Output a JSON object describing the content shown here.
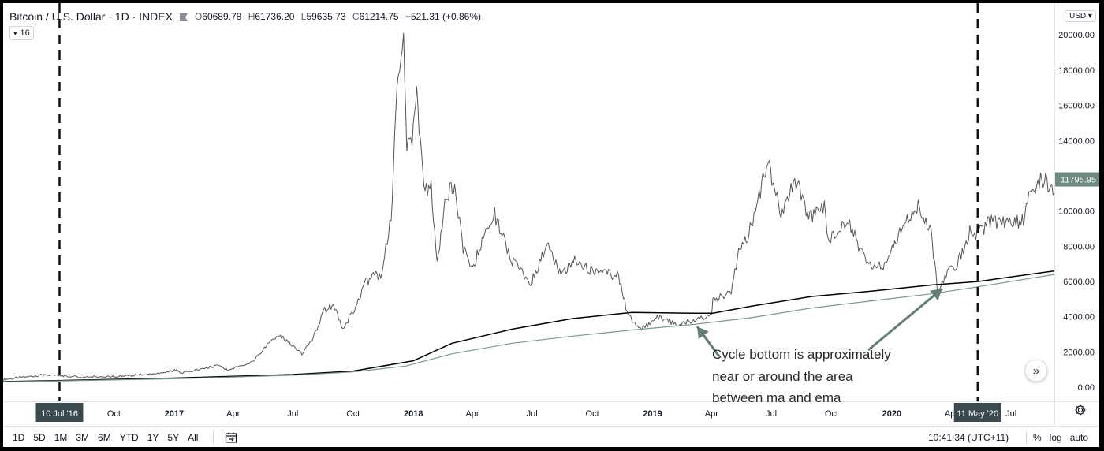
{
  "header": {
    "title": "Bitcoin / U.S. Dollar · 1D · INDEX",
    "open_label": "O",
    "open": "60689.78",
    "high_label": "H",
    "high": "61736.20",
    "low_label": "L",
    "low": "59635.73",
    "close_label": "C",
    "close": "61214.75",
    "change": "+521.31 (+0.86%)",
    "logo_icon": "index-flag-icon"
  },
  "legend_badge": {
    "icon": "chevron-down-icon",
    "label": "16"
  },
  "currency": "USD",
  "price_marker": {
    "label": "11795.95",
    "value": 11795.95
  },
  "annotation": {
    "lines": [
      "Cycle bottom is approximately",
      "near or around the area",
      "between ma and ema"
    ],
    "color": "#627d75"
  },
  "date_markers": [
    {
      "label": "10 Jul '16",
      "date": "2016-07-10"
    },
    {
      "label": "11 May '20",
      "date": "2020-05-11"
    }
  ],
  "bottom_bar": {
    "ranges": [
      "1D",
      "5D",
      "1M",
      "3M",
      "6M",
      "YTD",
      "1Y",
      "5Y",
      "All"
    ],
    "goto_icon": "calendar-goto-icon",
    "time": "10:41:34 (UTC+11)",
    "percent": "%",
    "log": "log",
    "auto": "auto",
    "settings_icon": "gear-icon",
    "scroll_icon": "double-chevron-right-icon"
  },
  "colors": {
    "price": "#555555",
    "ma": "#000000",
    "ema": "#7d978e",
    "marker_bg": "#3a4a4f",
    "price_marker_bg": "#6d8b82"
  },
  "chart_data": {
    "type": "line",
    "title": "Bitcoin / U.S. Dollar",
    "xlabel": "",
    "ylabel": "",
    "x_range": [
      "2016-04-15",
      "2020-09-05"
    ],
    "ylim": [
      -800,
      21800
    ],
    "grid": false,
    "y_ticks": [
      0,
      2000,
      4000,
      6000,
      8000,
      10000,
      12000,
      14000,
      16000,
      18000,
      20000
    ],
    "y_tick_labels": [
      "0.00",
      "2000.00",
      "4000.00",
      "6000.00",
      "8000.00",
      "10000.00",
      "12000.00",
      "14000.00",
      "16000.00",
      "18000.00",
      "20000.00"
    ],
    "x_ticks": [
      {
        "label": "Oct",
        "date": "2016-10-01",
        "bold": false
      },
      {
        "label": "2017",
        "date": "2017-01-01",
        "bold": true
      },
      {
        "label": "Apr",
        "date": "2017-04-01",
        "bold": false
      },
      {
        "label": "Jul",
        "date": "2017-07-01",
        "bold": false
      },
      {
        "label": "Oct",
        "date": "2017-10-01",
        "bold": false
      },
      {
        "label": "2018",
        "date": "2018-01-01",
        "bold": true
      },
      {
        "label": "Apr",
        "date": "2018-04-01",
        "bold": false
      },
      {
        "label": "Jul",
        "date": "2018-07-01",
        "bold": false
      },
      {
        "label": "Oct",
        "date": "2018-10-01",
        "bold": false
      },
      {
        "label": "2019",
        "date": "2019-01-01",
        "bold": true
      },
      {
        "label": "Apr",
        "date": "2019-04-01",
        "bold": false
      },
      {
        "label": "Jul",
        "date": "2019-07-01",
        "bold": false
      },
      {
        "label": "Oct",
        "date": "2019-10-01",
        "bold": false
      },
      {
        "label": "2020",
        "date": "2020-01-01",
        "bold": true
      },
      {
        "label": "Apr",
        "date": "2020-04-01",
        "bold": false
      },
      {
        "label": "Jul",
        "date": "2020-07-01",
        "bold": false
      }
    ],
    "series": [
      {
        "type": "price",
        "x": [
          "2016-04-15",
          "2016-06-15",
          "2016-07-10",
          "2016-08-10",
          "2016-10-01",
          "2016-12-01",
          "2016-12-25",
          "2017-01-05",
          "2017-01-12",
          "2017-02-20",
          "2017-03-10",
          "2017-03-25",
          "2017-05-01",
          "2017-05-25",
          "2017-06-12",
          "2017-07-15",
          "2017-08-01",
          "2017-08-17",
          "2017-09-01",
          "2017-09-15",
          "2017-10-01",
          "2017-10-20",
          "2017-11-01",
          "2017-11-12",
          "2017-11-28",
          "2017-12-07",
          "2017-12-17",
          "2017-12-22",
          "2017-12-30",
          "2018-01-06",
          "2018-01-17",
          "2018-01-28",
          "2018-02-06",
          "2018-02-20",
          "2018-03-05",
          "2018-03-18",
          "2018-04-01",
          "2018-04-12",
          "2018-05-05",
          "2018-05-30",
          "2018-06-29",
          "2018-07-26",
          "2018-08-14",
          "2018-09-04",
          "2018-10-01",
          "2018-11-10",
          "2018-11-25",
          "2018-12-15",
          "2019-01-10",
          "2019-02-08",
          "2019-03-10",
          "2019-04-01",
          "2019-04-03",
          "2019-05-01",
          "2019-05-14",
          "2019-05-28",
          "2019-06-26",
          "2019-07-16",
          "2019-08-06",
          "2019-08-29",
          "2019-09-20",
          "2019-09-26",
          "2019-10-25",
          "2019-11-25",
          "2019-12-17",
          "2020-01-15",
          "2020-02-12",
          "2020-03-01",
          "2020-03-12",
          "2020-03-20",
          "2020-04-10",
          "2020-04-29",
          "2020-05-10",
          "2020-05-11",
          "2020-06-01",
          "2020-06-25",
          "2020-07-20",
          "2020-07-28",
          "2020-08-17",
          "2020-09-05"
        ],
        "values": [
          430,
          700,
          650,
          580,
          610,
          760,
          880,
          980,
          790,
          1100,
          1250,
          960,
          1450,
          2500,
          2900,
          1900,
          2800,
          4300,
          4700,
          3300,
          4300,
          5900,
          6400,
          6200,
          9800,
          16500,
          19500,
          14000,
          13500,
          17000,
          11000,
          11500,
          6900,
          11000,
          11300,
          7900,
          6600,
          8000,
          9800,
          7200,
          5900,
          8200,
          6300,
          7300,
          6600,
          6300,
          4000,
          3250,
          4000,
          3500,
          3900,
          4150,
          4950,
          5400,
          8000,
          8700,
          12900,
          9800,
          11900,
          9600,
          10200,
          8200,
          9500,
          7000,
          6800,
          8900,
          10300,
          8800,
          5200,
          6200,
          7000,
          8800,
          8700,
          8700,
          9500,
          9200,
          9500,
          11000,
          11900,
          11000
        ]
      },
      {
        "type": "ma",
        "x": [
          "2016-04-15",
          "2016-07-10",
          "2017-01-01",
          "2017-07-01",
          "2017-10-01",
          "2018-01-01",
          "2018-03-01",
          "2018-06-01",
          "2018-09-01",
          "2018-12-01",
          "2019-03-01",
          "2019-04-03",
          "2019-06-01",
          "2019-09-01",
          "2019-12-01",
          "2020-03-01",
          "2020-05-11",
          "2020-09-05"
        ],
        "values": [
          320,
          380,
          520,
          720,
          920,
          1500,
          2500,
          3300,
          3900,
          4250,
          4200,
          4200,
          4600,
          5150,
          5450,
          5800,
          6000,
          6600
        ]
      },
      {
        "type": "ema",
        "x": [
          "2016-04-15",
          "2016-07-10",
          "2017-01-01",
          "2017-07-01",
          "2017-10-01",
          "2017-12-20",
          "2018-03-01",
          "2018-06-01",
          "2018-09-01",
          "2018-12-01",
          "2019-03-01",
          "2019-06-01",
          "2019-09-01",
          "2019-12-01",
          "2020-03-01",
          "2020-05-11",
          "2020-09-05"
        ],
        "values": [
          300,
          360,
          480,
          680,
          870,
          1200,
          1900,
          2500,
          2900,
          3250,
          3550,
          3950,
          4500,
          4900,
          5300,
          5700,
          6400
        ]
      }
    ]
  }
}
